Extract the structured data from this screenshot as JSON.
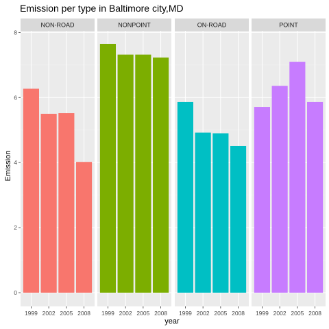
{
  "chart_data": {
    "type": "bar",
    "title": "Emission per type in Baltimore city,MD",
    "xlabel": "year",
    "ylabel": "Emission",
    "ylim": [
      0,
      8.05
    ],
    "yticks": [
      "0",
      "2",
      "4",
      "6",
      "8"
    ],
    "categories": [
      "1999",
      "2002",
      "2005",
      "2008"
    ],
    "grid": true,
    "legend": "none",
    "panels": [
      {
        "name": "NON-ROAD",
        "color": "#F8766D",
        "values": [
          6.27,
          5.5,
          5.52,
          4.02
        ]
      },
      {
        "name": "NONPOINT",
        "color": "#7CAE00",
        "values": [
          7.65,
          7.32,
          7.32,
          7.23
        ]
      },
      {
        "name": "ON-ROAD",
        "color": "#00BFC4",
        "values": [
          5.86,
          4.92,
          4.9,
          4.51
        ]
      },
      {
        "name": "POINT",
        "color": "#C77CFF",
        "values": [
          5.71,
          6.36,
          7.1,
          5.86
        ]
      }
    ]
  }
}
